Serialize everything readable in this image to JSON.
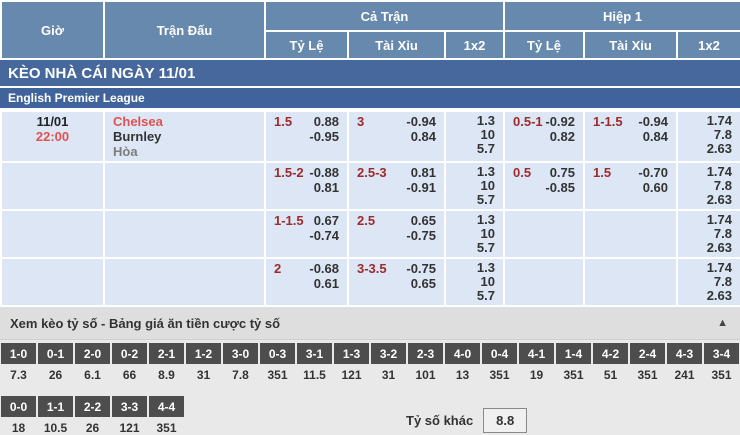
{
  "header": {
    "col_time": "Giờ",
    "col_match": "Trận Đấu",
    "group_full": "Cả Trận",
    "group_half": "Hiệp 1",
    "sub_handicap": "Tỷ Lệ",
    "sub_overunder": "Tài Xỉu",
    "sub_1x2": "1x2",
    "sub_handicap2": "Tỷ Lệ",
    "sub_overunder2": "Tài Xỉu",
    "sub_1x2_2": "1x2"
  },
  "section_bar": {
    "title": "KÈO NHÀ CÁI NGÀY 11/01"
  },
  "league_bar": {
    "title": "English Premier League"
  },
  "match": {
    "date": "11/01",
    "time": "22:00",
    "home": "Chelsea",
    "away": "Burnley",
    "draw": "Hòa"
  },
  "odds_rows": [
    {
      "ft_handicap": {
        "hdp": "1.5",
        "top": "0.88",
        "bottom": "-0.95"
      },
      "ft_ou": {
        "hdp": "3",
        "top": "-0.94",
        "bottom": "0.84"
      },
      "ft_1x2": [
        "1.3",
        "10",
        "5.7"
      ],
      "h1_handicap": {
        "hdp": "0.5-1",
        "top": "-0.92",
        "bottom": "0.82"
      },
      "h1_ou": {
        "hdp": "1-1.5",
        "top": "-0.94",
        "bottom": "0.84"
      },
      "h1_1x2": [
        "1.74",
        "7.8",
        "2.63"
      ]
    },
    {
      "ft_handicap": {
        "hdp": "1.5-2",
        "top": "-0.88",
        "bottom": "0.81"
      },
      "ft_ou": {
        "hdp": "2.5-3",
        "top": "0.81",
        "bottom": "-0.91"
      },
      "ft_1x2": [
        "1.3",
        "10",
        "5.7"
      ],
      "h1_handicap": {
        "hdp": "0.5",
        "top": "0.75",
        "bottom": "-0.85"
      },
      "h1_ou": {
        "hdp": "1.5",
        "top": "-0.70",
        "bottom": "0.60"
      },
      "h1_1x2": [
        "1.74",
        "7.8",
        "2.63"
      ]
    },
    {
      "ft_handicap": {
        "hdp": "1-1.5",
        "top": "0.67",
        "bottom": "-0.74"
      },
      "ft_ou": {
        "hdp": "2.5",
        "top": "0.65",
        "bottom": "-0.75"
      },
      "ft_1x2": [
        "1.3",
        "10",
        "5.7"
      ],
      "h1_handicap": {
        "hdp": "",
        "top": "",
        "bottom": ""
      },
      "h1_ou": {
        "hdp": "",
        "top": "",
        "bottom": ""
      },
      "h1_1x2": [
        "1.74",
        "7.8",
        "2.63"
      ]
    },
    {
      "ft_handicap": {
        "hdp": "2",
        "top": "-0.68",
        "bottom": "0.61"
      },
      "ft_ou": {
        "hdp": "3-3.5",
        "top": "-0.75",
        "bottom": "0.65"
      },
      "ft_1x2": [
        "1.3",
        "10",
        "5.7"
      ],
      "h1_handicap": {
        "hdp": "",
        "top": "",
        "bottom": ""
      },
      "h1_ou": {
        "hdp": "",
        "top": "",
        "bottom": ""
      },
      "h1_1x2": [
        "1.74",
        "7.8",
        "2.63"
      ]
    }
  ],
  "score_section": {
    "title": "Xem kèo tỷ số - Bảng giá ăn tiền cược tỷ số",
    "collapse_icon": "▲",
    "row1": [
      {
        "score": "1-0",
        "odds": "7.3"
      },
      {
        "score": "0-1",
        "odds": "26"
      },
      {
        "score": "2-0",
        "odds": "6.1"
      },
      {
        "score": "0-2",
        "odds": "66"
      },
      {
        "score": "2-1",
        "odds": "8.9"
      },
      {
        "score": "1-2",
        "odds": "31"
      },
      {
        "score": "3-0",
        "odds": "7.8"
      },
      {
        "score": "0-3",
        "odds": "351"
      },
      {
        "score": "3-1",
        "odds": "11.5"
      },
      {
        "score": "1-3",
        "odds": "121"
      },
      {
        "score": "3-2",
        "odds": "31"
      },
      {
        "score": "2-3",
        "odds": "101"
      },
      {
        "score": "4-0",
        "odds": "13"
      },
      {
        "score": "0-4",
        "odds": "351"
      },
      {
        "score": "4-1",
        "odds": "19"
      },
      {
        "score": "1-4",
        "odds": "351"
      },
      {
        "score": "4-2",
        "odds": "51"
      },
      {
        "score": "2-4",
        "odds": "351"
      },
      {
        "score": "4-3",
        "odds": "241"
      },
      {
        "score": "3-4",
        "odds": "351"
      }
    ],
    "row2": [
      {
        "score": "0-0",
        "odds": "18"
      },
      {
        "score": "1-1",
        "odds": "10.5"
      },
      {
        "score": "2-2",
        "odds": "26"
      },
      {
        "score": "3-3",
        "odds": "121"
      },
      {
        "score": "4-4",
        "odds": "351"
      }
    ],
    "other_label": "Tỷ số khác",
    "other_odds": "8.8"
  },
  "colors": {
    "header_blue": "#6789ae",
    "section_bar_blue": "#47689c",
    "league_bar_blue": "#41639b",
    "row_bg": "#dce6f5",
    "handicap_red": "#9c2b2b",
    "accent_red": "#e05252",
    "score_header_gray": "#4d4d4d"
  }
}
